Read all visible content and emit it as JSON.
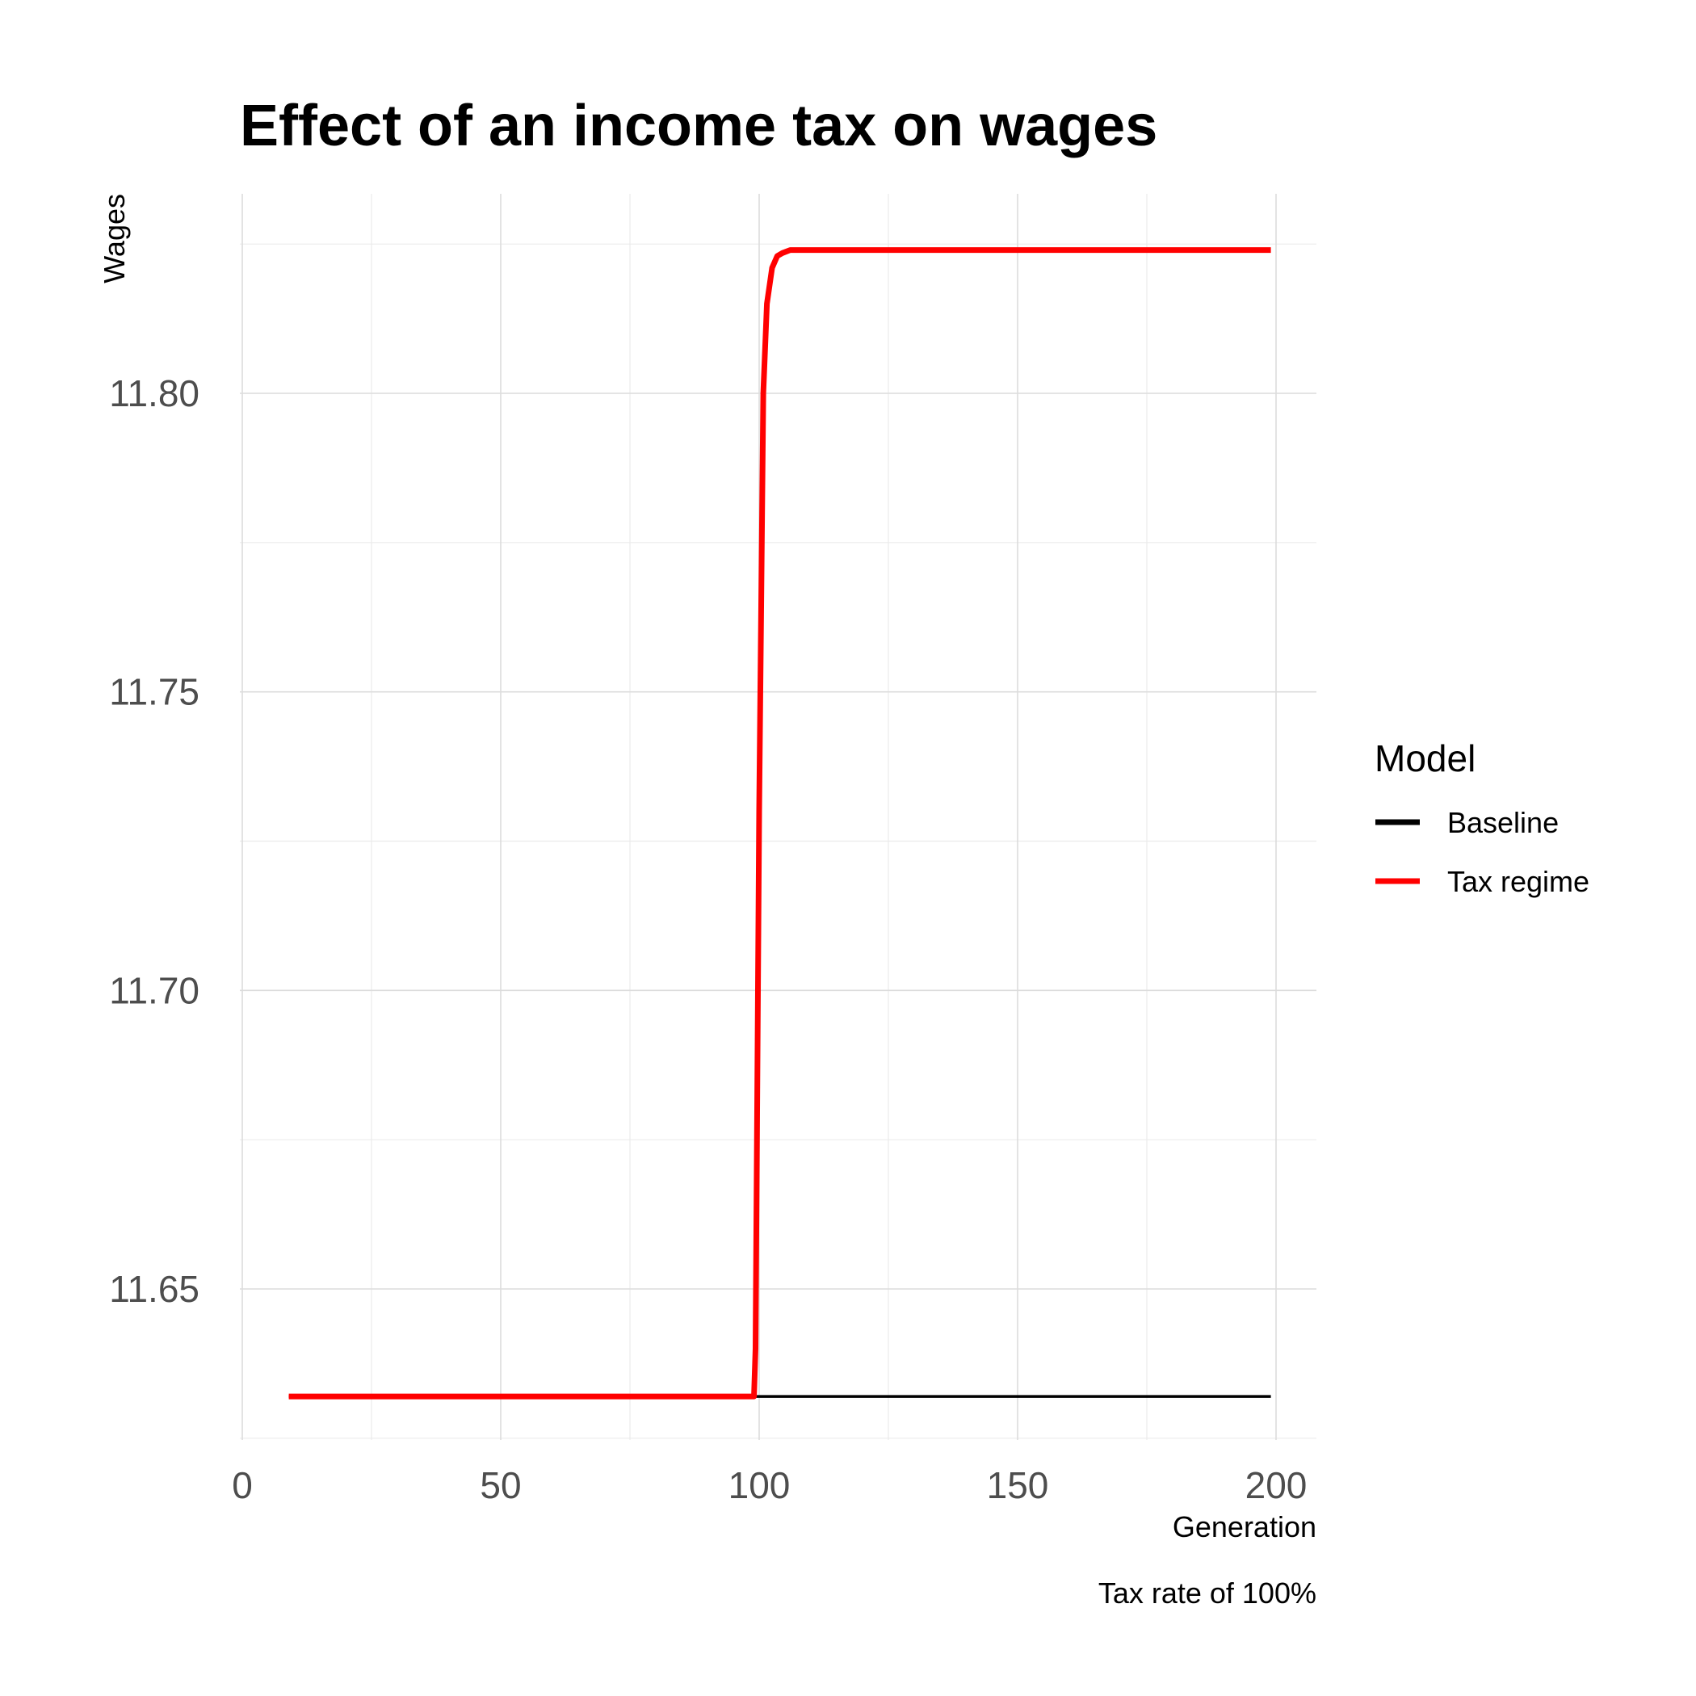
{
  "chart_data": {
    "type": "line",
    "title": "Effect of an income tax on wages",
    "xlabel": "Generation",
    "ylabel": "Wages",
    "caption": "Tax rate of 100%",
    "xlim": [
      0,
      200
    ],
    "ylim": [
      11.625,
      11.833
    ],
    "x_ticks": [
      0,
      50,
      100,
      150,
      200
    ],
    "x_tick_labels": [
      "0",
      "50",
      "100",
      "150",
      "200"
    ],
    "y_ticks": [
      11.65,
      11.7,
      11.75,
      11.8
    ],
    "y_tick_labels": [
      "11.65",
      "11.70",
      "11.75",
      "11.80"
    ],
    "grid": true,
    "legend": {
      "title": "Model",
      "placement": "right",
      "entries": [
        "Baseline",
        "Tax regime"
      ]
    },
    "series": [
      {
        "name": "Baseline",
        "color": "#000000",
        "x": [
          9,
          199
        ],
        "y": [
          11.632,
          11.632
        ]
      },
      {
        "name": "Tax regime",
        "color": "#ff0000",
        "x": [
          9,
          99,
          99.3,
          100,
          100.8,
          101.5,
          102.5,
          103.5,
          104.5,
          106,
          110,
          199
        ],
        "y": [
          11.632,
          11.632,
          11.64,
          11.73,
          11.8,
          11.815,
          11.821,
          11.823,
          11.8235,
          11.824,
          11.824,
          11.824
        ]
      }
    ]
  }
}
